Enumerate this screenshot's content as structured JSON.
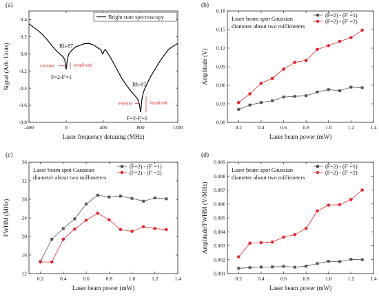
{
  "chart_data": [
    {
      "panel": "(a)",
      "type": "line",
      "xlabel": "Laser frequency detuning (MHz)",
      "ylabel": "Signal (Arb. Units)",
      "xlim": [
        -400,
        1200
      ],
      "ylim": [
        -0.8,
        0.5
      ],
      "xticks": [
        -400,
        0,
        400,
        800,
        1200
      ],
      "yticks": [
        -0.8,
        -0.6,
        -0.4,
        -0.2,
        0.0,
        0.2,
        0.4
      ],
      "xtick_labels": [
        "-400",
        "0",
        "400",
        "800",
        "1200"
      ],
      "ytick_labels": [
        "-0.8",
        "-0.6",
        "-0.4",
        "-0.2",
        "0.0",
        "0.2",
        "0.4"
      ],
      "series": [
        {
          "name": "Bright state spectroscopy",
          "color": "#000000",
          "x": [
            -400,
            -350,
            -300,
            -250,
            -200,
            -150,
            -100,
            -60,
            -30,
            -15,
            -8,
            -4,
            0,
            4,
            8,
            15,
            30,
            60,
            100,
            150,
            200,
            250,
            300,
            340,
            370,
            380,
            390,
            400,
            410,
            420,
            440,
            480,
            520,
            560,
            600,
            650,
            700,
            740,
            770,
            785,
            795,
            800,
            805,
            810,
            815,
            825,
            840,
            870,
            900,
            950,
            1000,
            1050,
            1100,
            1150,
            1200
          ],
          "y": [
            0.35,
            0.31,
            0.27,
            0.22,
            0.16,
            0.09,
            0.03,
            -0.01,
            -0.04,
            -0.07,
            -0.12,
            -0.16,
            -0.18,
            -0.16,
            -0.11,
            -0.05,
            0.0,
            0.04,
            0.08,
            0.1,
            0.12,
            0.12,
            0.1,
            0.07,
            0.05,
            0.03,
            0.0,
            0.01,
            0.04,
            0.05,
            0.02,
            -0.05,
            -0.13,
            -0.21,
            -0.29,
            -0.37,
            -0.44,
            -0.49,
            -0.53,
            -0.58,
            -0.64,
            -0.68,
            -0.64,
            -0.58,
            -0.53,
            -0.47,
            -0.42,
            -0.35,
            -0.28,
            -0.19,
            -0.1,
            -0.02,
            0.05,
            0.09,
            0.12
          ]
        }
      ],
      "annotations": [
        {
          "text": "Rb-87",
          "x": 0,
          "y": 0.07
        },
        {
          "text": "FWHM",
          "color": "#d62728",
          "x": 0,
          "y": -0.14
        },
        {
          "text": "Amplitude",
          "color": "#d62728",
          "x": 0,
          "y": -0.13
        },
        {
          "text": "F=2-F'=1",
          "x": 0,
          "y": -0.28
        },
        {
          "text": "Rb-87",
          "x": 800,
          "y": -0.38
        },
        {
          "text": "FWHM",
          "color": "#d62728",
          "x": 800,
          "y": -0.58
        },
        {
          "text": "Amplitude",
          "color": "#d62728",
          "x": 800,
          "y": -0.57
        },
        {
          "text": "F=2-F'=2",
          "x": 800,
          "y": -0.76
        }
      ],
      "peaks": [
        {
          "x": 0,
          "top": -0.1,
          "bottom": -0.18,
          "fwhm": 30
        },
        {
          "x": 800,
          "top": -0.49,
          "bottom": -0.68,
          "fwhm": 35
        }
      ]
    },
    {
      "panel": "(b)",
      "type": "line",
      "note": [
        "Laser beam spot Gaussian",
        "diameter about two millimeters"
      ],
      "xlabel": "Laser beam power (mW)",
      "ylabel": "Amplitude (V)",
      "xlim": [
        0.1,
        1.4
      ],
      "ylim": [
        0.0,
        0.18
      ],
      "xticks": [
        0.2,
        0.4,
        0.6,
        0.8,
        1.0,
        1.2,
        1.4
      ],
      "yticks": [
        0.0,
        0.03,
        0.06,
        0.09,
        0.12,
        0.15,
        0.18
      ],
      "xtick_labels": [
        "0.2",
        "0.4",
        "0.6",
        "0.8",
        "1.0",
        "1.2",
        "1.4"
      ],
      "ytick_labels": [
        "0.00",
        "0.03",
        "0.06",
        "0.09",
        "0.12",
        "0.15",
        "0.18"
      ],
      "x": [
        0.2,
        0.3,
        0.4,
        0.5,
        0.6,
        0.7,
        0.8,
        0.9,
        1.0,
        1.1,
        1.2,
        1.3
      ],
      "series": [
        {
          "name": "(F=2) - (F' =1)",
          "color": "#555555",
          "marker": "square",
          "values": [
            0.021,
            0.028,
            0.032,
            0.035,
            0.041,
            0.042,
            0.043,
            0.049,
            0.053,
            0.051,
            0.057,
            0.056
          ]
        },
        {
          "name": "(F=2) - (F' =2)",
          "color": "#e3262d",
          "marker": "circle",
          "values": [
            0.032,
            0.046,
            0.063,
            0.071,
            0.086,
            0.097,
            0.1,
            0.118,
            0.124,
            0.131,
            0.137,
            0.149
          ]
        }
      ]
    },
    {
      "panel": "(c)",
      "type": "line",
      "note": [
        "Laser beam spot Gaussian",
        "diameter about two millimeters"
      ],
      "xlabel": "Laser beam power (mW)",
      "ylabel": "FWHM (MHz)",
      "xlim": [
        0.1,
        1.4
      ],
      "ylim": [
        12,
        36
      ],
      "xticks": [
        0.2,
        0.4,
        0.6,
        0.8,
        1.0,
        1.2,
        1.4
      ],
      "yticks": [
        12,
        16,
        20,
        24,
        28,
        32,
        36
      ],
      "xtick_labels": [
        "0.2",
        "0.4",
        "0.6",
        "0.8",
        "1.0",
        "1.2",
        "1.4"
      ],
      "ytick_labels": [
        "12",
        "16",
        "20",
        "24",
        "28",
        "32",
        "36"
      ],
      "x": [
        0.2,
        0.3,
        0.4,
        0.5,
        0.6,
        0.7,
        0.8,
        0.9,
        1.0,
        1.1,
        1.2,
        1.3
      ],
      "series": [
        {
          "name": "(F=2) - (F' =1)",
          "color": "#555555",
          "marker": "square",
          "values": [
            14.6,
            19.4,
            21.7,
            23.8,
            27.0,
            28.9,
            28.5,
            28.7,
            28.2,
            27.6,
            28.3,
            28.1
          ]
        },
        {
          "name": "(F=2) - (F' =2)",
          "color": "#e3262d",
          "marker": "circle",
          "values": [
            14.5,
            14.5,
            19.4,
            21.6,
            23.5,
            25.0,
            23.6,
            21.5,
            21.1,
            22.1,
            21.7,
            21.5
          ]
        }
      ]
    },
    {
      "panel": "(d)",
      "type": "line",
      "note": [
        "Laser beam spot Gaussian",
        "diameter about two millimeters"
      ],
      "xlabel": "Laser beam power (mW)",
      "ylabel": "Amplitude/FWHM (V/MHz)",
      "xlim": [
        0.1,
        1.4
      ],
      "ylim": [
        0.001,
        0.009
      ],
      "xticks": [
        0.2,
        0.4,
        0.6,
        0.8,
        1.0,
        1.2,
        1.4
      ],
      "yticks": [
        0.001,
        0.002,
        0.003,
        0.004,
        0.005,
        0.006,
        0.007,
        0.008,
        0.009
      ],
      "xtick_labels": [
        "0.2",
        "0.4",
        "0.6",
        "0.8",
        "1.0",
        "1.2",
        "1.4"
      ],
      "ytick_labels": [
        "0.001",
        "0.002",
        "0.003",
        "0.004",
        "0.005",
        "0.006",
        "0.007",
        "0.008",
        "0.009"
      ],
      "x": [
        0.2,
        0.3,
        0.4,
        0.5,
        0.6,
        0.7,
        0.8,
        0.9,
        1.0,
        1.1,
        1.2,
        1.3
      ],
      "series": [
        {
          "name": "(F=2) - (F' =1)",
          "color": "#555555",
          "marker": "square",
          "values": [
            0.00138,
            0.00143,
            0.00147,
            0.00148,
            0.00152,
            0.00146,
            0.00153,
            0.00172,
            0.00188,
            0.00186,
            0.00202,
            0.002
          ]
        },
        {
          "name": "(F=2) - (F' =2)",
          "color": "#e3262d",
          "marker": "circle",
          "values": [
            0.0022,
            0.00318,
            0.00322,
            0.00326,
            0.00362,
            0.0038,
            0.00424,
            0.0055,
            0.00592,
            0.00595,
            0.00632,
            0.007
          ]
        }
      ]
    }
  ]
}
